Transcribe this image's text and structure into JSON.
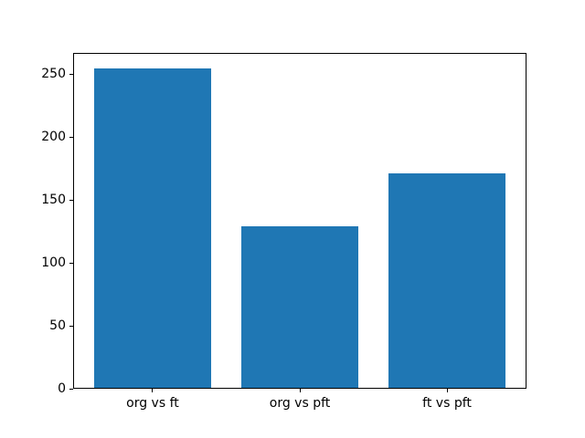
{
  "chart_data": {
    "type": "bar",
    "title": "",
    "xlabel": "",
    "ylabel": "",
    "categories": [
      "org vs ft",
      "org vs pft",
      "ft vs pft"
    ],
    "values": [
      254,
      128,
      170
    ],
    "yticks": [
      0,
      50,
      100,
      150,
      200,
      250
    ],
    "ylim": [
      0,
      266.7
    ],
    "bar_width_fraction": 0.8,
    "bar_color": "#1f77b4",
    "spine_color": "#000000",
    "tick_label_color": "#000000",
    "background_color": "#ffffff",
    "grid": false,
    "legend": false
  }
}
